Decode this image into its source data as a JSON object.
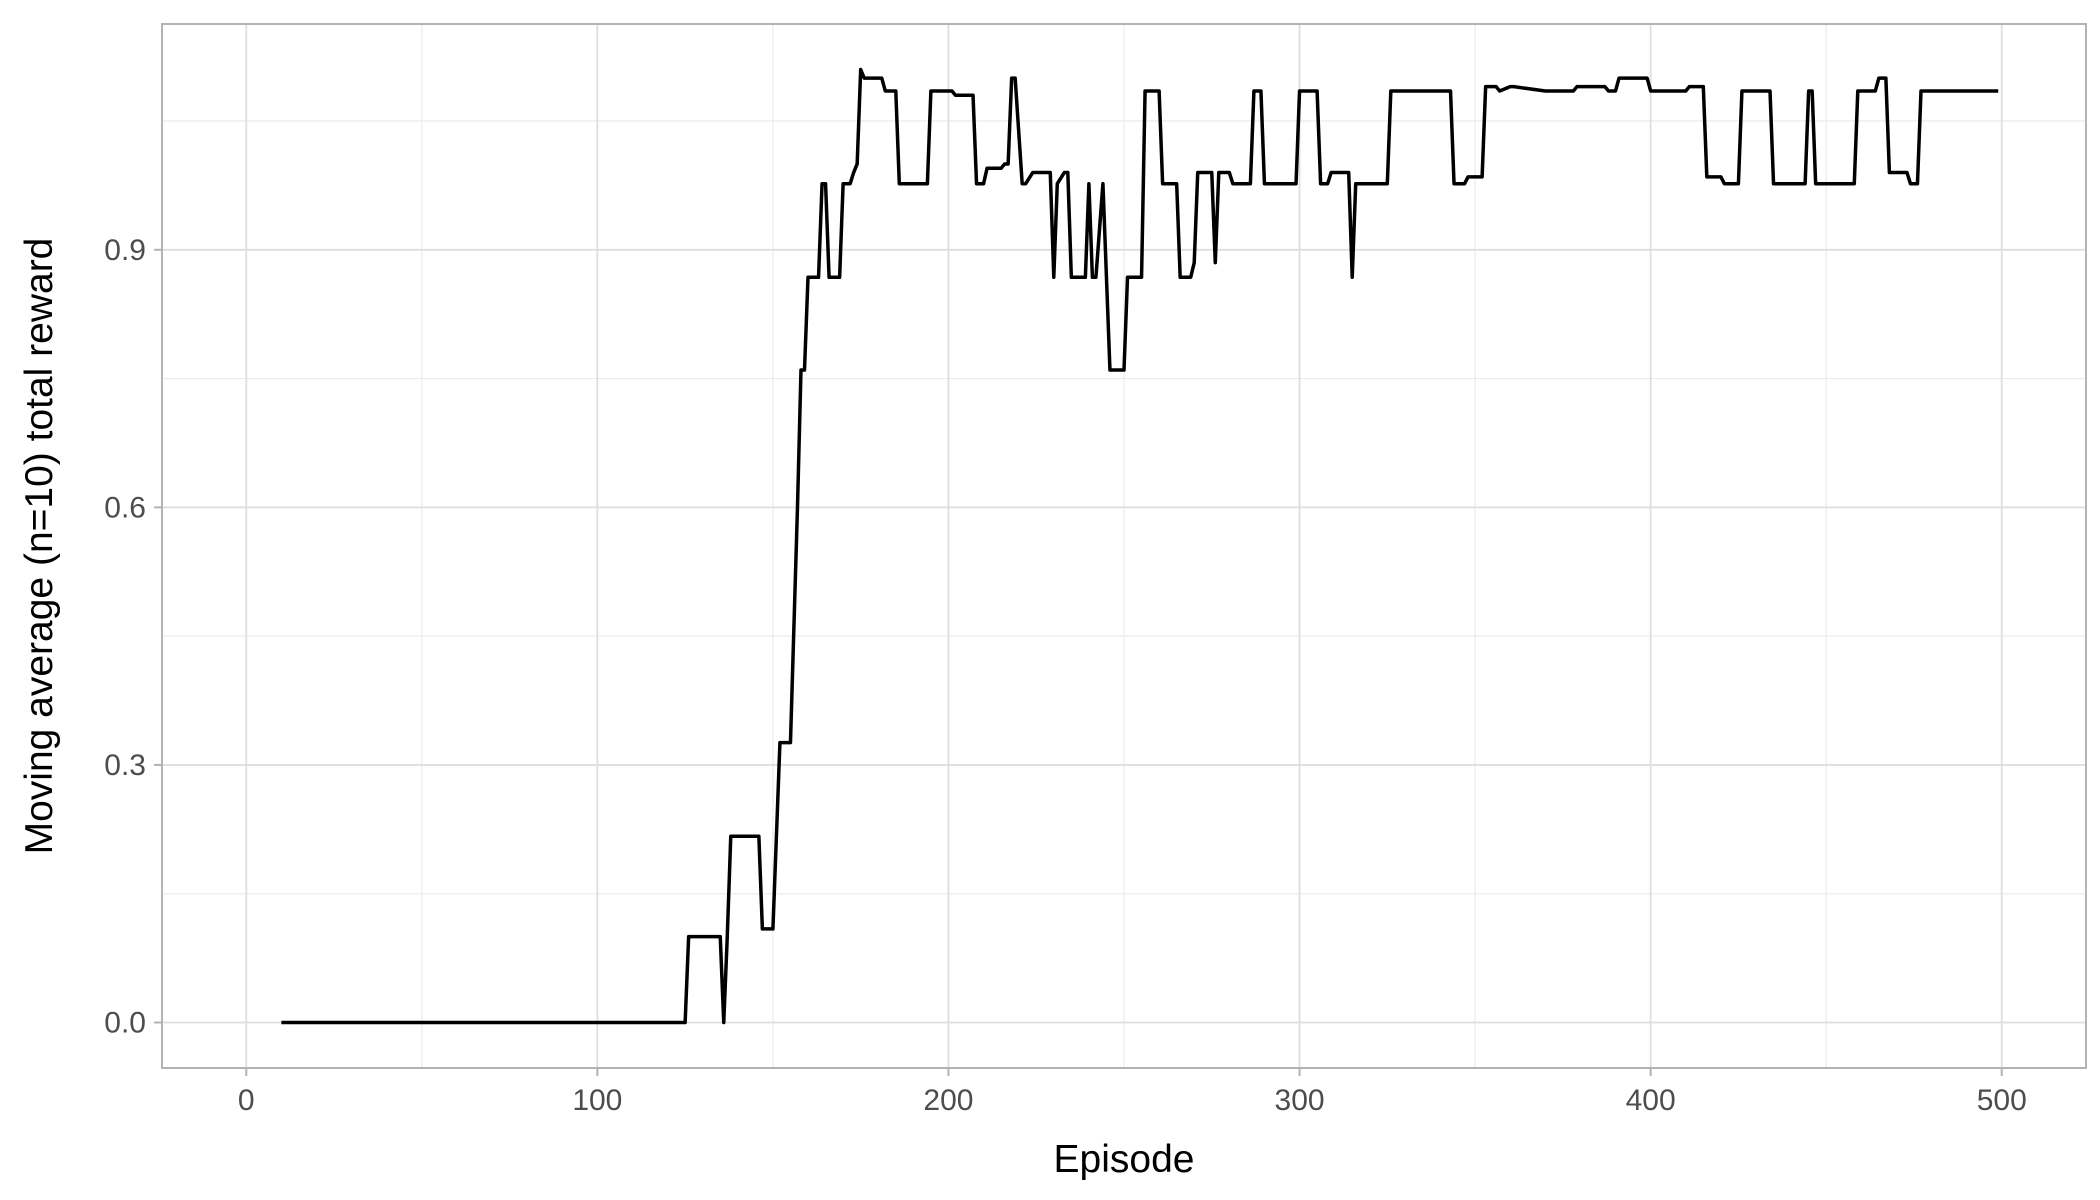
{
  "chart_data": {
    "type": "line",
    "title": "",
    "xlabel": "Episode",
    "ylabel": "Moving average (n=10) total reward",
    "xlim": [
      -24,
      524
    ],
    "ylim": [
      -0.053,
      1.163
    ],
    "x_ticks": [
      0,
      100,
      200,
      300,
      400,
      500
    ],
    "x_tick_labels": [
      "0",
      "100",
      "200",
      "300",
      "400",
      "500"
    ],
    "y_ticks": [
      0.0,
      0.3,
      0.6,
      0.9
    ],
    "y_tick_labels": [
      "0.0",
      "0.3",
      "0.6",
      "0.9"
    ],
    "x_minor_ticks": [
      50,
      150,
      250,
      350,
      450
    ],
    "y_minor_ticks": [
      0.15,
      0.45,
      0.75,
      1.05
    ],
    "grid": true,
    "legend": "none",
    "line_color": "#000000",
    "series": [
      {
        "x": [
          10,
          125,
          126,
          135,
          136,
          137,
          138,
          146,
          147,
          150,
          151,
          152,
          155,
          157,
          158,
          159,
          160,
          163,
          164,
          165,
          166,
          169,
          170,
          172,
          173,
          174,
          175,
          176,
          181,
          182,
          185,
          186,
          194,
          195,
          201,
          202,
          207,
          208,
          210,
          211,
          215,
          216,
          217,
          218,
          219,
          221,
          222,
          224,
          229,
          230,
          231,
          233,
          234,
          235,
          239,
          240,
          241,
          242,
          244,
          245,
          246,
          247,
          250,
          251,
          255,
          256,
          260,
          261,
          265,
          266,
          269,
          270,
          271,
          275,
          276,
          277,
          280,
          281,
          286,
          287,
          289,
          290,
          299,
          300,
          305,
          306,
          308,
          309,
          314,
          315,
          316,
          317,
          319,
          320,
          325,
          326,
          343,
          344,
          347,
          348,
          352,
          353,
          356,
          357,
          360,
          361,
          370,
          371,
          378,
          379,
          387,
          388,
          390,
          391,
          399,
          400,
          410,
          411,
          415,
          416,
          420,
          421,
          425,
          426,
          434,
          435,
          444,
          445,
          446,
          447,
          458,
          459,
          464,
          465,
          467,
          468,
          473,
          474,
          476,
          477,
          478,
          479,
          499
        ],
        "values": [
          0.0,
          0.0,
          0.1,
          0.1,
          0.0,
          0.1,
          0.217,
          0.217,
          0.109,
          0.109,
          0.217,
          0.326,
          0.326,
          0.6,
          0.76,
          0.76,
          0.868,
          0.868,
          0.977,
          0.977,
          0.868,
          0.868,
          0.977,
          0.977,
          0.99,
          1.0,
          1.11,
          1.1,
          1.1,
          1.085,
          1.085,
          0.977,
          0.977,
          1.085,
          1.085,
          1.08,
          1.08,
          0.977,
          0.977,
          0.995,
          0.995,
          1.0,
          1.0,
          1.1,
          1.1,
          0.977,
          0.977,
          0.99,
          0.99,
          0.868,
          0.977,
          0.99,
          0.99,
          0.868,
          0.868,
          0.977,
          0.868,
          0.868,
          0.977,
          0.868,
          0.76,
          0.76,
          0.76,
          0.868,
          0.868,
          1.085,
          1.085,
          0.977,
          0.977,
          0.868,
          0.868,
          0.885,
          0.99,
          0.99,
          0.885,
          0.99,
          0.99,
          0.977,
          0.977,
          1.085,
          1.085,
          0.977,
          0.977,
          1.085,
          1.085,
          0.977,
          0.977,
          0.99,
          0.99,
          0.868,
          0.977,
          0.977,
          0.977,
          0.977,
          0.977,
          1.085,
          1.085,
          0.977,
          0.977,
          0.985,
          0.985,
          1.09,
          1.09,
          1.085,
          1.09,
          1.09,
          1.085,
          1.085,
          1.085,
          1.09,
          1.09,
          1.085,
          1.085,
          1.1,
          1.1,
          1.085,
          1.085,
          1.09,
          1.09,
          0.985,
          0.985,
          0.977,
          0.977,
          1.085,
          1.085,
          0.977,
          0.977,
          1.085,
          1.085,
          0.977,
          0.977,
          1.085,
          1.085,
          1.1,
          1.1,
          0.99,
          0.99,
          0.977,
          0.977,
          1.085,
          1.085,
          1.085,
          1.085
        ]
      }
    ]
  }
}
